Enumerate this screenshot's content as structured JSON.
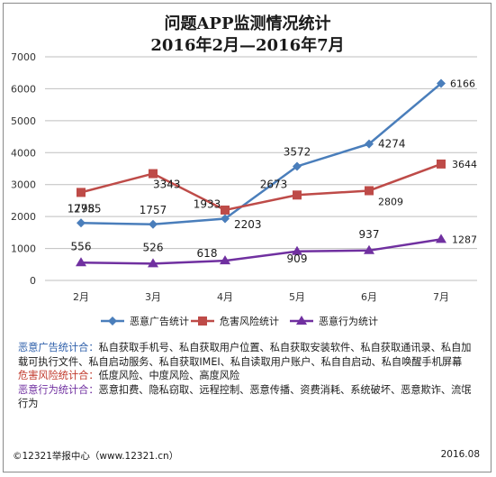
{
  "colors": {
    "ad": "#4a7ebb",
    "risk": "#be4b48",
    "behavior": "#7030a0",
    "grid": "#bfbfbf",
    "note_ad": "#2e5faa",
    "note_risk": "#c0392b",
    "note_behavior": "#7030a0"
  },
  "chart_data": {
    "type": "line",
    "title": "问题APP监测情况统计",
    "subtitle": "2016年2月—2016年7月",
    "categories": [
      "2月",
      "3月",
      "4月",
      "5月",
      "6月",
      "7月"
    ],
    "ylim": [
      0,
      7000
    ],
    "yticks": [
      0,
      1000,
      2000,
      3000,
      4000,
      5000,
      6000,
      7000
    ],
    "grid": true,
    "legend_position": "bottom",
    "series": [
      {
        "name": "恶意广告统计",
        "color_key": "ad",
        "marker": "diamond",
        "values": [
          1798,
          1757,
          1933,
          3572,
          4274,
          6166
        ]
      },
      {
        "name": "危害风险统计",
        "color_key": "risk",
        "marker": "square",
        "values": [
          2755,
          3343,
          2203,
          2673,
          2809,
          3644
        ]
      },
      {
        "name": "恶意行为统计",
        "color_key": "behavior",
        "marker": "triangle",
        "values": [
          556,
          526,
          618,
          909,
          937,
          1287
        ]
      }
    ]
  },
  "notes": [
    {
      "label": "恶意广告统计合：",
      "color_key": "note_ad",
      "text": "私自获取手机号、私自获取用户位置、私自获取安装软件、私自获取通讯录、私自加载可执行文件、私自启动服务、私自获取IMEI、私自读取用户账户、私自自启动、私自唤醒手机屏幕"
    },
    {
      "label": "危害风险统计合：",
      "color_key": "note_risk",
      "text": "低度风险、中度风险、高度风险"
    },
    {
      "label": "恶意行为统计合：",
      "color_key": "note_behavior",
      "text": "恶意扣费、隐私窃取、远程控制、恶意传播、资费消耗、系统破坏、恶意欺诈、流氓行为"
    }
  ],
  "footer": {
    "source": "©12321举报中心（www.12321.cn）",
    "date": "2016.08"
  }
}
